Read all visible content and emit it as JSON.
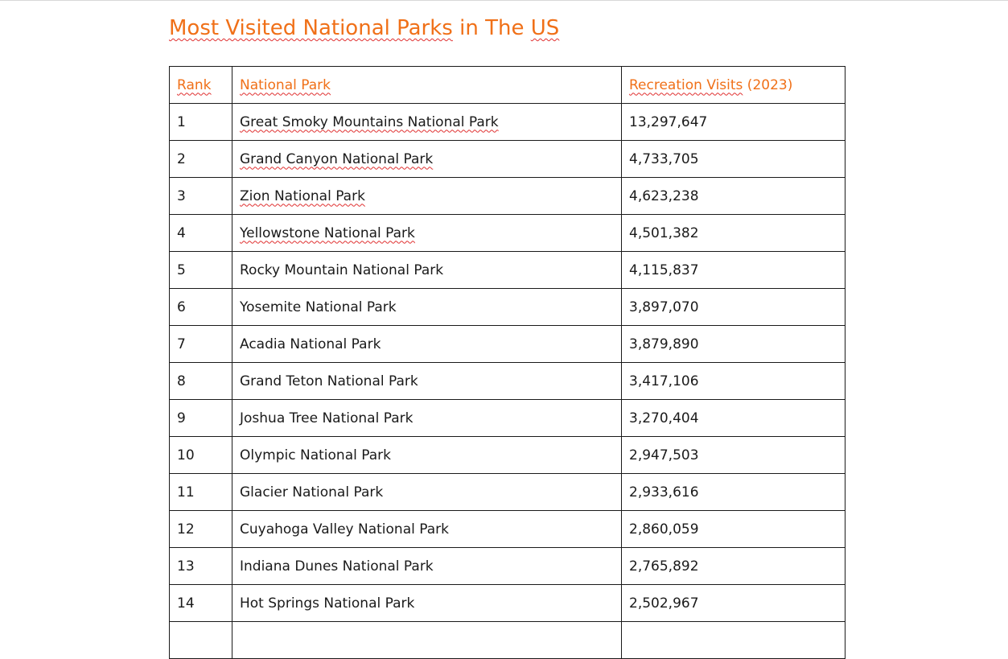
{
  "document": {
    "title_parts": [
      "Most Visited National Parks",
      " in The ",
      "US"
    ],
    "accent_color": "#f07018",
    "text_color": "#1a1a1a",
    "spellcheck_color": "#e03030"
  },
  "table": {
    "headers": {
      "rank": "Rank",
      "park": "National Park",
      "visits_word": "Recreation Visits",
      "visits_year": " (2023)"
    },
    "rows": [
      {
        "rank": "1",
        "park": "Great Smoky Mountains National Park",
        "visits": "13,297,647"
      },
      {
        "rank": "2",
        "park": "Grand Canyon National Park",
        "visits": "4,733,705"
      },
      {
        "rank": "3",
        "park": "Zion National Park",
        "visits": "4,623,238"
      },
      {
        "rank": "4",
        "park": "Yellowstone National Park",
        "visits": "4,501,382"
      },
      {
        "rank": "5",
        "park": "Rocky Mountain National Park",
        "visits": "4,115,837"
      },
      {
        "rank": "6",
        "park": "Yosemite National Park",
        "visits": "3,897,070"
      },
      {
        "rank": "7",
        "park": "Acadia National Park",
        "visits": "3,879,890"
      },
      {
        "rank": "8",
        "park": "Grand Teton National Park",
        "visits": "3,417,106"
      },
      {
        "rank": "9",
        "park": "Joshua Tree National Park",
        "visits": "3,270,404"
      },
      {
        "rank": "10",
        "park": "Olympic National Park",
        "visits": "2,947,503"
      },
      {
        "rank": "11",
        "park": "Glacier National Park",
        "visits": "2,933,616"
      },
      {
        "rank": "12",
        "park": "Cuyahoga Valley National Park",
        "visits": "2,860,059"
      },
      {
        "rank": "13",
        "park": "Indiana Dunes National Park",
        "visits": "2,765,892"
      },
      {
        "rank": "14",
        "park": "Hot Springs National Park",
        "visits": "2,502,967"
      },
      {
        "rank": "",
        "park": "",
        "visits": ""
      }
    ]
  }
}
